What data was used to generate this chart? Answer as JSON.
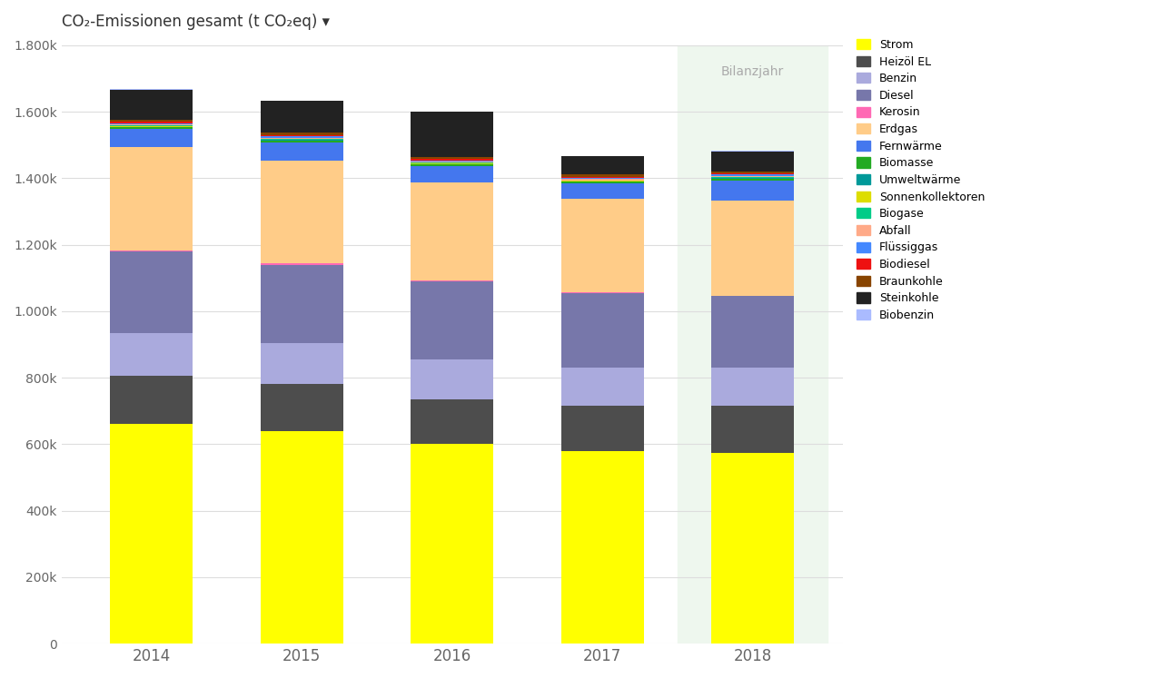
{
  "title": "CO₂-Emissionen gesamt (t CO₂eq) ▾",
  "years": [
    2014,
    2015,
    2016,
    2017,
    2018
  ],
  "highlight_year": 2018,
  "highlight_label": "Bilanzjahr",
  "ylim": [
    0,
    1800000
  ],
  "ytick_labels": [
    "0",
    "200k",
    "400k",
    "600k",
    "800k",
    "1.000k",
    "1.200k",
    "1.400k",
    "1.600k",
    "1.800k"
  ],
  "ytick_values": [
    0,
    200000,
    400000,
    600000,
    800000,
    1000000,
    1200000,
    1400000,
    1600000,
    1800000
  ],
  "segments": [
    {
      "label": "Strom",
      "color": "#ffff00",
      "values": [
        660000,
        640000,
        600000,
        580000,
        575000
      ]
    },
    {
      "label": "Heizöl EL",
      "color": "#4d4d4d",
      "values": [
        145000,
        140000,
        135000,
        135000,
        140000
      ]
    },
    {
      "label": "Benzin",
      "color": "#aaaadd",
      "values": [
        130000,
        125000,
        120000,
        115000,
        115000
      ]
    },
    {
      "label": "Diesel",
      "color": "#7777aa",
      "values": [
        245000,
        235000,
        235000,
        225000,
        215000
      ]
    },
    {
      "label": "Kerosin",
      "color": "#ff69b4",
      "values": [
        3000,
        3000,
        2000,
        2000,
        2000
      ]
    },
    {
      "label": "Erdgas",
      "color": "#ffcc88",
      "values": [
        310000,
        310000,
        295000,
        280000,
        285000
      ]
    },
    {
      "label": "Fernwärme",
      "color": "#4477ee",
      "values": [
        55000,
        55000,
        50000,
        48000,
        62000
      ]
    },
    {
      "label": "Biomasse",
      "color": "#22aa22",
      "values": [
        5000,
        5000,
        4000,
        4000,
        4000
      ]
    },
    {
      "label": "Umweltwärme",
      "color": "#009999",
      "values": [
        2000,
        2000,
        2000,
        2000,
        2000
      ]
    },
    {
      "label": "Sonnenkollektoren",
      "color": "#dddd00",
      "values": [
        1000,
        1000,
        1000,
        1000,
        1000
      ]
    },
    {
      "label": "Biogase",
      "color": "#00cc88",
      "values": [
        2000,
        2000,
        2000,
        2000,
        2000
      ]
    },
    {
      "label": "Abfall",
      "color": "#ffaa88",
      "values": [
        3000,
        3000,
        3000,
        3000,
        3000
      ]
    },
    {
      "label": "Flüssiggas",
      "color": "#4488ff",
      "values": [
        5000,
        5000,
        5000,
        5000,
        5000
      ]
    },
    {
      "label": "Biodiesel",
      "color": "#ee1111",
      "values": [
        3000,
        3000,
        3000,
        2000,
        3000
      ]
    },
    {
      "label": "Braunkohle",
      "color": "#884400",
      "values": [
        8000,
        8000,
        7000,
        7000,
        7000
      ]
    },
    {
      "label": "Steinkohle",
      "color": "#222222",
      "values": [
        90000,
        95000,
        135000,
        55000,
        60000
      ]
    },
    {
      "label": "Biobenzin",
      "color": "#aabbff",
      "values": [
        1000,
        1000,
        1000,
        1000,
        1000
      ]
    }
  ],
  "background_color": "#ffffff",
  "highlight_bg": "#eef7ee",
  "grid_color": "#dddddd",
  "bar_width": 0.55
}
